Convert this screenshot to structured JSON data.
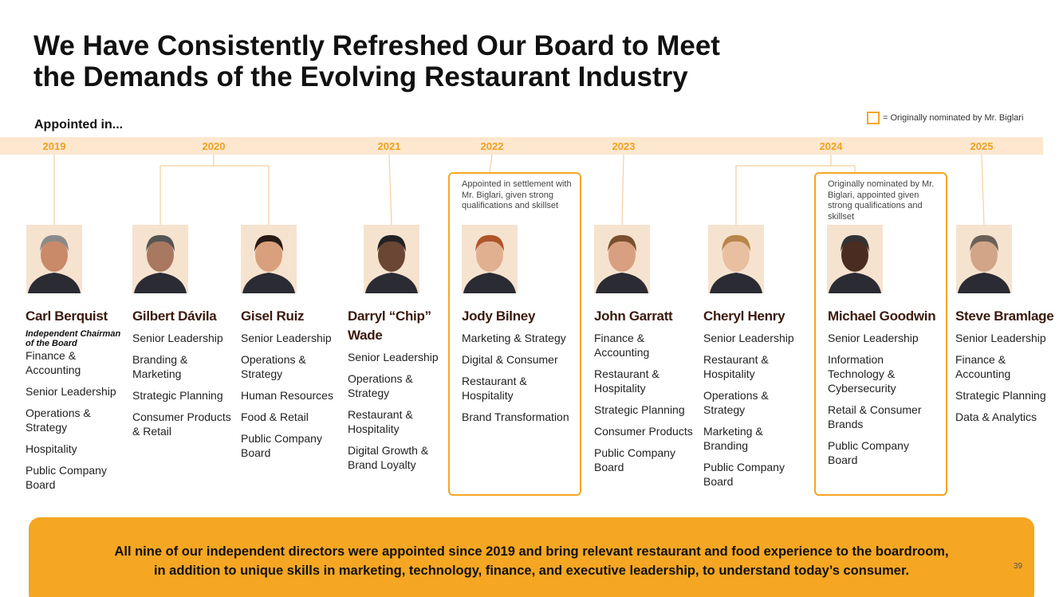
{
  "header": {
    "title": [
      "We Have Consistently Refreshed Our Board to Meet",
      "the Demands of the Evolving Restaurant Industry"
    ],
    "subtitle": "Appointed in...",
    "legend": "= Originally nominated by Mr. Biglari"
  },
  "timeline": {
    "years": [
      "2019",
      "2020",
      "2021",
      "2022",
      "2023",
      "2024",
      "2025"
    ]
  },
  "directors": [
    {
      "name": "Carl Berquist",
      "role": "Independent Chairman of the Board",
      "skills": [
        "Finance & Accounting",
        "Senior Leadership",
        "Operations & Strategy",
        "Hospitality",
        "Public Company Board"
      ]
    },
    {
      "name": "Gilbert Dávila",
      "skills": [
        "Senior Leadership",
        "Branding & Marketing",
        "Strategic Planning",
        "Consumer Products & Retail"
      ]
    },
    {
      "name": "Gisel Ruiz",
      "skills": [
        "Senior Leadership",
        "Operations & Strategy",
        "Human Resources",
        "Food & Retail",
        "Public Company Board"
      ]
    },
    {
      "name": "Darryl “Chip” Wade",
      "skills": [
        "Senior Leadership",
        "Operations & Strategy",
        "Restaurant & Hospitality",
        "Digital Growth & Brand Loyalty"
      ]
    },
    {
      "name": "Jody Bilney",
      "note": "Appointed in settlement with Mr. Biglari, given strong qualifications and skillset",
      "skills": [
        "Marketing & Strategy",
        "Digital & Consumer",
        "Restaurant & Hospitality",
        "Brand Transformation"
      ]
    },
    {
      "name": "John Garratt",
      "skills": [
        "Finance & Accounting",
        "Restaurant & Hospitality",
        "Strategic Planning",
        "Consumer Products",
        "Public Company Board"
      ]
    },
    {
      "name": "Cheryl Henry",
      "skills": [
        "Senior Leadership",
        "Restaurant & Hospitality",
        "Operations & Strategy",
        "Marketing & Branding",
        "Public Company Board"
      ]
    },
    {
      "name": "Michael Goodwin",
      "note": "Originally nominated by Mr. Biglari, appointed given strong qualifications and skillset",
      "skills": [
        "Senior Leadership",
        "Information Technology & Cybersecurity",
        "Retail & Consumer Brands",
        "Public Company Board"
      ]
    },
    {
      "name": "Steve Bramlage",
      "skills": [
        "Senior Leadership",
        "Finance & Accounting",
        "Strategic Planning",
        "Data & Analytics"
      ]
    }
  ],
  "footer": {
    "lines": [
      "All nine of our independent directors were appointed since 2019 and bring relevant restaurant and food experience to the boardroom,",
      "in addition to unique skills in marketing, technology, finance, and executive leadership, to understand today’s consumer."
    ],
    "page": "39"
  }
}
